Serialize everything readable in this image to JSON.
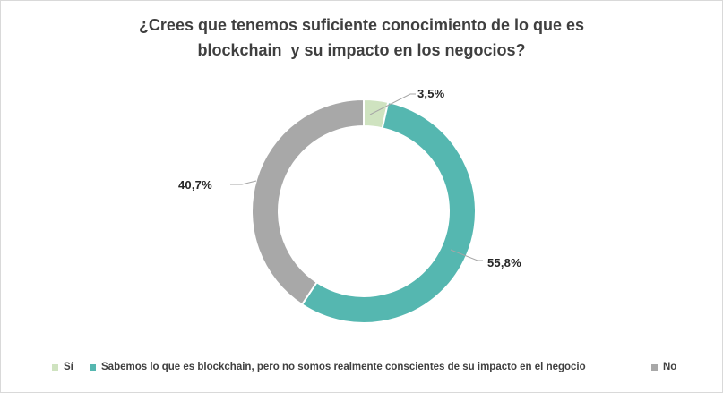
{
  "frame": {
    "background": "#ffffff",
    "border_color": "#d9d9d9"
  },
  "chart_data": {
    "type": "pie",
    "subtype": "donut",
    "title": "¿Crees que tenemos suficiente conocimiento de lo que es blockchain  y su impacto en los negocios?",
    "title_lines": [
      "¿Crees que tenemos suficiente conocimiento de lo que es",
      "blockchain  y su impacto en los negocios?"
    ],
    "categories": [
      "Sí",
      "Sabemos lo que es blockchain, pero no somos realmente conscientes de su impacto en el negocio",
      "No"
    ],
    "values": [
      3.5,
      55.8,
      40.7
    ],
    "data_labels": [
      "3,5%",
      "55,8%",
      "40,7%"
    ],
    "colors": [
      "#cfe3c0",
      "#55b7b0",
      "#a8a8a8"
    ],
    "hole_ratio": 0.76,
    "start_angle_deg": 0,
    "direction": "clockwise",
    "legend_position": "bottom",
    "title_color": "#3f3f3f",
    "label_color": "#262626",
    "leader_line_color": "#a6a6a6"
  }
}
